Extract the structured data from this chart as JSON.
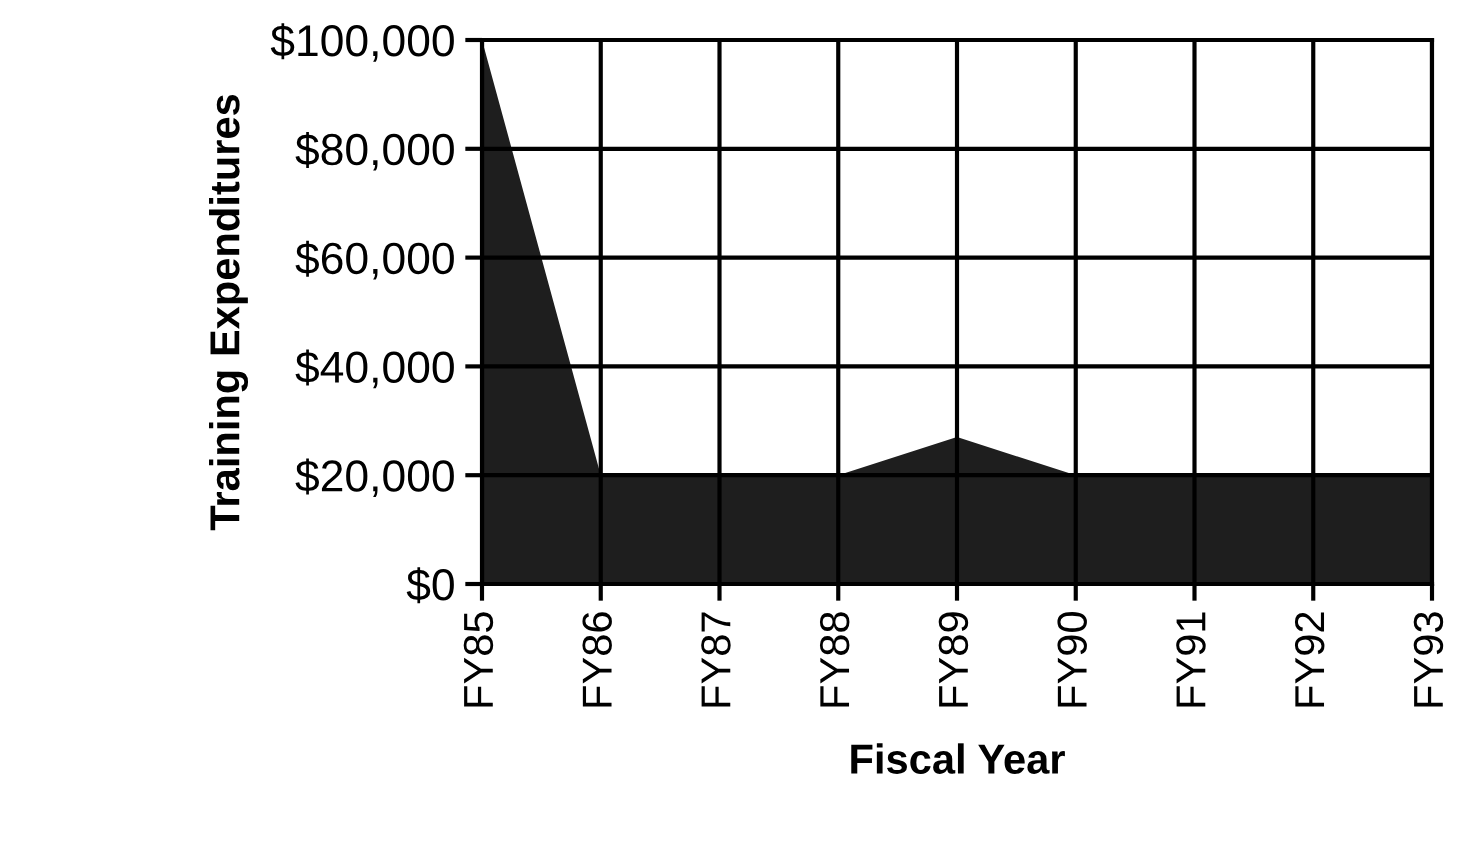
{
  "chart_data": {
    "type": "area",
    "xlabel": "Fiscal Year",
    "ylabel": "Training Expenditures",
    "categories": [
      "FY85",
      "FY86",
      "FY87",
      "FY88",
      "FY89",
      "FY90",
      "FY91",
      "FY92",
      "FY93"
    ],
    "values": [
      100000,
      20000,
      20000,
      20000,
      27000,
      20000,
      20000,
      20000,
      20000
    ],
    "color": "#1e1e1e",
    "ylim": [
      0,
      100000
    ],
    "yticks": [
      {
        "value": 0,
        "label": "$0"
      },
      {
        "value": 20000,
        "label": "$20,000"
      },
      {
        "value": 40000,
        "label": "$40,000"
      },
      {
        "value": 60000,
        "label": "$60,000"
      },
      {
        "value": 80000,
        "label": "$80,000"
      },
      {
        "value": 100000,
        "label": "$100,000"
      }
    ],
    "grid": true
  }
}
